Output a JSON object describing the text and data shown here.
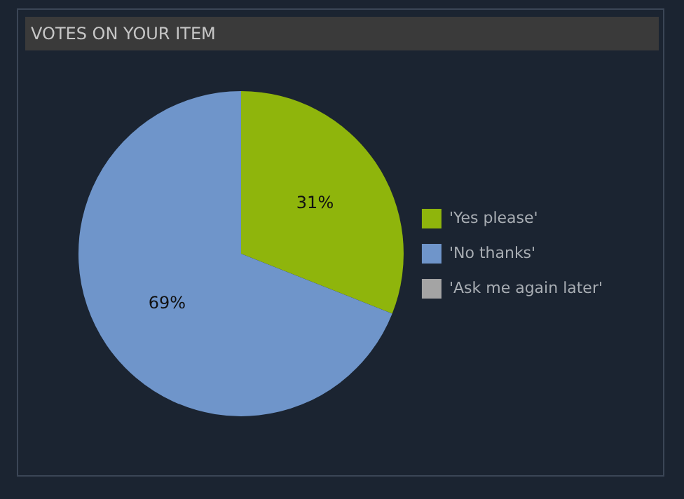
{
  "chart_data": {
    "type": "pie",
    "title": "VOTES ON YOUR ITEM",
    "categories": [
      "'Yes please'",
      "'No thanks'",
      "'Ask me again later'"
    ],
    "values": [
      31,
      69,
      0
    ],
    "colors": [
      "#8fb50c",
      "#6f95ca",
      "#a4a4a4"
    ],
    "value_labels": [
      "31%",
      "69%",
      null
    ],
    "legend": "right"
  }
}
